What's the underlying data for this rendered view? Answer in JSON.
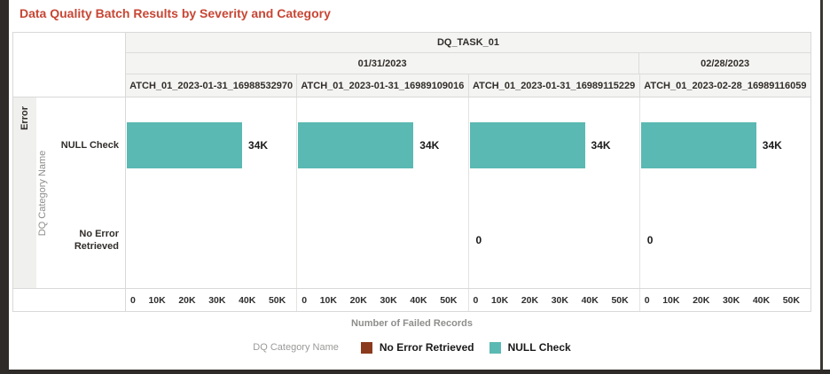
{
  "colors": {
    "title": "#c74634",
    "bar": "#5bb9b3",
    "no_error": "#8b3a1e",
    "frame": "#2e2b28",
    "header_bg": "#f4f4f2",
    "border": "#d9d9d9",
    "muted_text": "#8e8e8c"
  },
  "chart_data": {
    "type": "bar",
    "orientation": "horizontal",
    "title": "Data Quality Batch Results by Severity and Category",
    "task_header": "DQ_TASK_01",
    "severity_row_label": "Error",
    "y_axis_title": "DQ Category Name",
    "x_axis_title": "Number of Failed Records",
    "categories": [
      "NULL Check",
      "No Error Retrieved"
    ],
    "x_ticks": [
      "0",
      "10K",
      "20K",
      "30K",
      "40K",
      "50K"
    ],
    "xlim": [
      0,
      50000
    ],
    "grid": false,
    "date_groups": [
      {
        "label": "01/31/2023",
        "span": 3
      },
      {
        "label": "02/28/2023",
        "span": 1
      }
    ],
    "panels": [
      {
        "date": "01/31/2023",
        "batch": "ATCH_01_2023-01-31_16988532970",
        "values": [
          34000,
          null
        ],
        "value_labels": [
          "34K",
          ""
        ]
      },
      {
        "date": "01/31/2023",
        "batch": "ATCH_01_2023-01-31_16989109016",
        "values": [
          34000,
          null
        ],
        "value_labels": [
          "34K",
          ""
        ]
      },
      {
        "date": "01/31/2023",
        "batch": "ATCH_01_2023-01-31_16989115229",
        "values": [
          34000,
          0
        ],
        "value_labels": [
          "34K",
          "0"
        ]
      },
      {
        "date": "02/28/2023",
        "batch": "ATCH_01_2023-02-28_16989116059",
        "values": [
          34000,
          0
        ],
        "value_labels": [
          "34K",
          "0"
        ]
      }
    ],
    "legend": {
      "title": "DQ Category Name",
      "position": "bottom",
      "items": [
        {
          "label": "No Error Retrieved",
          "color": "#8b3a1e"
        },
        {
          "label": "NULL Check",
          "color": "#5bb9b3"
        }
      ]
    }
  }
}
